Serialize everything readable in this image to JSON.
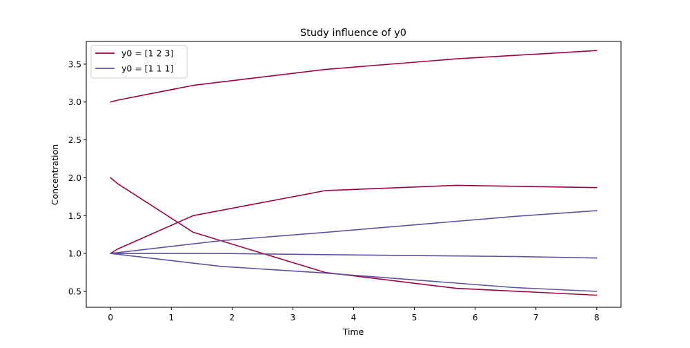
{
  "chart_data": {
    "type": "line",
    "title": "Study influence of y0",
    "xlabel": "Time",
    "ylabel": "Concentration",
    "xlim": [
      -0.4,
      8.4
    ],
    "ylim": [
      0.29,
      3.8
    ],
    "xticks": [
      0,
      1,
      2,
      3,
      4,
      5,
      6,
      7,
      8
    ],
    "xtick_labels": [
      "0",
      "1",
      "2",
      "3",
      "4",
      "5",
      "6",
      "7",
      "8"
    ],
    "yticks": [
      0.5,
      1.0,
      1.5,
      2.0,
      2.5,
      3.0,
      3.5
    ],
    "ytick_labels": [
      "0.5",
      "1.0",
      "1.5",
      "2.0",
      "2.5",
      "3.0",
      "3.5"
    ],
    "grid": false,
    "legend_position": "top-left",
    "series": [
      {
        "name": "y0 = [1 2 3]",
        "color": "#9e0142",
        "curves": [
          {
            "x": [
              0,
              0.12,
              1.36,
              3.53,
              5.69,
              8.0
            ],
            "y": [
              3.0,
              3.025,
              3.22,
              3.43,
              3.57,
              3.68
            ]
          },
          {
            "x": [
              0,
              0.12,
              1.36,
              3.53,
              5.69,
              8.0
            ],
            "y": [
              2.0,
              1.92,
              1.28,
              0.75,
              0.54,
              0.45
            ]
          },
          {
            "x": [
              0,
              0.12,
              1.36,
              3.53,
              5.69,
              8.0
            ],
            "y": [
              1.0,
              1.06,
              1.5,
              1.83,
              1.9,
              1.87
            ]
          }
        ]
      },
      {
        "name": "y0 = [1 1 1]",
        "color": "#5e4fa2",
        "curves": [
          {
            "x": [
              0,
              1.82,
              3.55,
              6.65,
              8.0
            ],
            "y": [
              1.0,
              1.17,
              1.28,
              1.49,
              1.565
            ]
          },
          {
            "x": [
              0,
              1.82,
              3.55,
              6.65,
              8.0
            ],
            "y": [
              1.0,
              1.0,
              0.985,
              0.96,
              0.94
            ]
          },
          {
            "x": [
              0,
              1.82,
              3.55,
              6.65,
              8.0
            ],
            "y": [
              1.0,
              0.83,
              0.74,
              0.55,
              0.5
            ]
          }
        ]
      }
    ]
  }
}
